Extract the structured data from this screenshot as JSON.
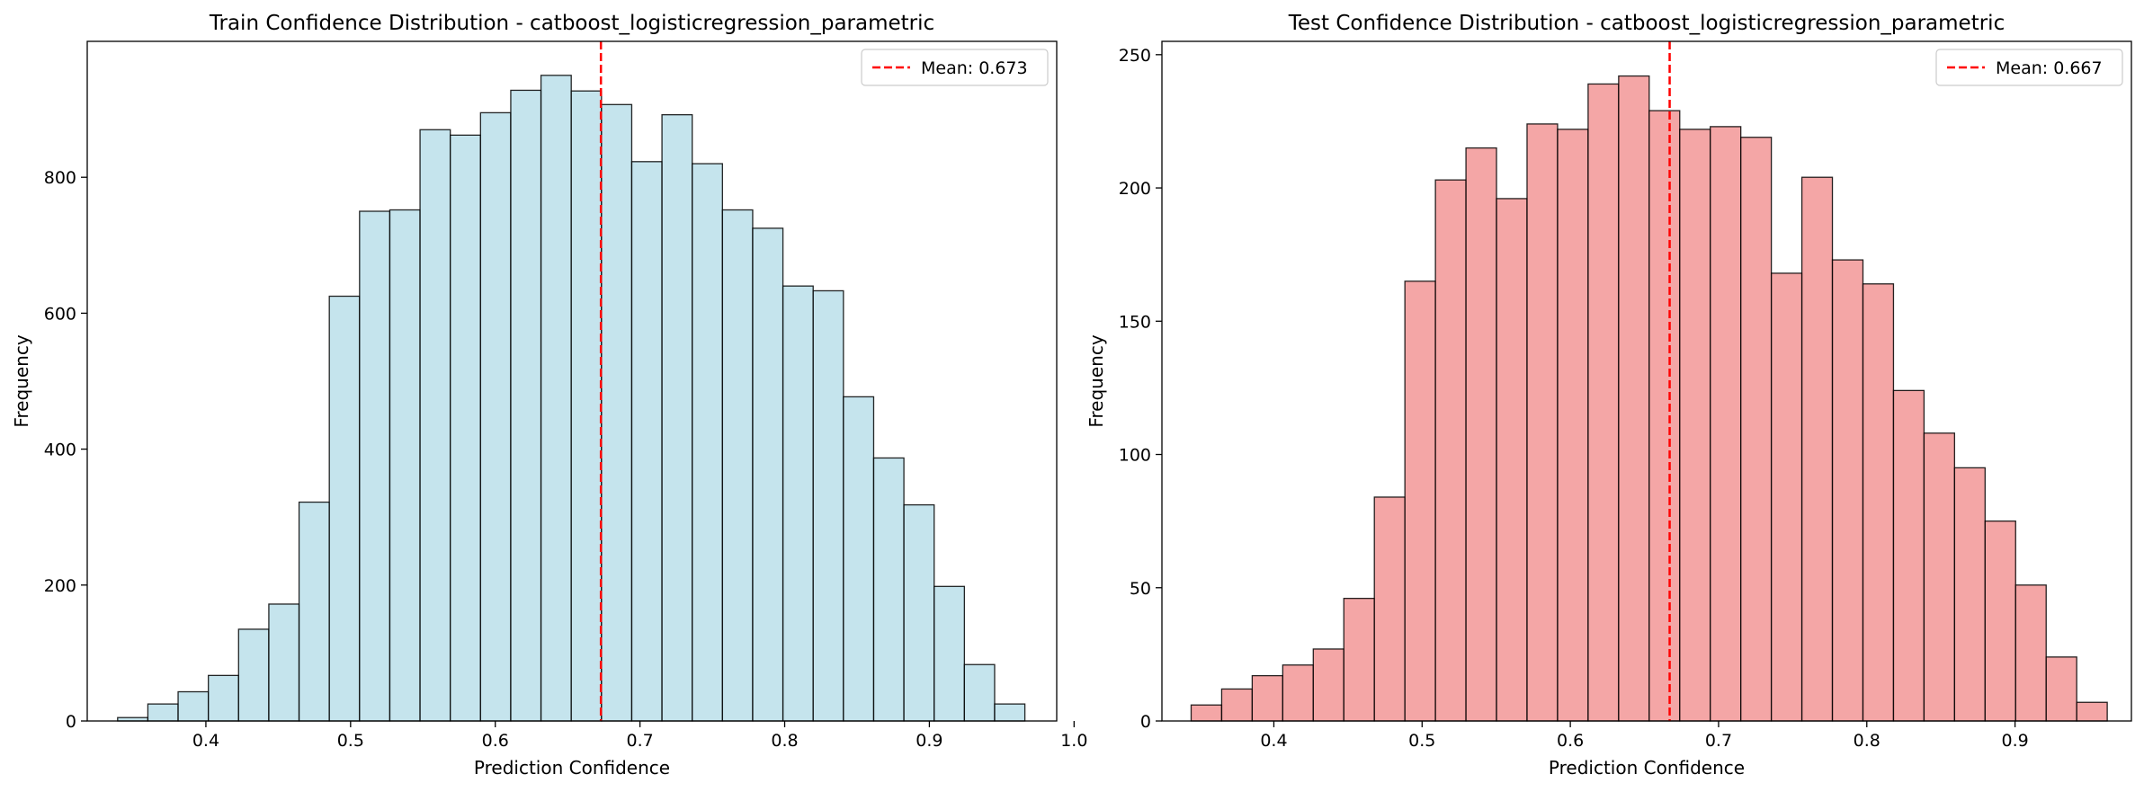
{
  "chart_data": [
    {
      "type": "bar",
      "title": "Train Confidence Distribution - catboost_logisticregression_parametric",
      "xlabel": "Prediction Confidence",
      "ylabel": "Frequency",
      "xlim": [
        0.318,
        0.988
      ],
      "ylim": [
        0,
        1000
      ],
      "xticks": [
        0.4,
        0.5,
        0.6,
        0.7,
        0.8,
        0.9,
        1.0
      ],
      "xtick_labels": [
        "0.4",
        "0.5",
        "0.6",
        "0.7",
        "0.8",
        "0.9",
        "1.0"
      ],
      "yticks": [
        0,
        200,
        400,
        600,
        800
      ],
      "ytick_labels": [
        "0",
        "200",
        "400",
        "600",
        "800"
      ],
      "bin_start": 0.339,
      "bin_width": 0.0209,
      "values": [
        5,
        25,
        43,
        67,
        135,
        172,
        322,
        625,
        750,
        752,
        870,
        862,
        895,
        928,
        950,
        927,
        907,
        823,
        892,
        820,
        752,
        725,
        640,
        633,
        477,
        387,
        318,
        198,
        83,
        25
      ],
      "bar_color": "#add8e6",
      "mean": 0.673,
      "mean_label": "Mean: 0.673",
      "mean_color": "#ff0000",
      "legend_position": "upper right",
      "grid": false
    },
    {
      "type": "bar",
      "title": "Test Confidence Distribution - catboost_logisticregression_parametric",
      "xlabel": "Prediction Confidence",
      "ylabel": "Frequency",
      "xlim": [
        0.3245,
        0.9785
      ],
      "ylim": [
        0,
        255
      ],
      "xticks": [
        0.4,
        0.5,
        0.6,
        0.7,
        0.8,
        0.9
      ],
      "xtick_labels": [
        "0.4",
        "0.5",
        "0.6",
        "0.7",
        "0.8",
        "0.9"
      ],
      "yticks": [
        0,
        50,
        100,
        150,
        200,
        250
      ],
      "ytick_labels": [
        "0",
        "50",
        "100",
        "150",
        "200",
        "250"
      ],
      "bin_start": 0.3442,
      "bin_width": 0.0206,
      "values": [
        6,
        12,
        17,
        21,
        27,
        46,
        84,
        165,
        203,
        215,
        196,
        224,
        222,
        239,
        242,
        229,
        222,
        223,
        219,
        168,
        204,
        173,
        164,
        124,
        108,
        95,
        75,
        51,
        24,
        7
      ],
      "bar_color": "#f08080",
      "mean": 0.667,
      "mean_label": "Mean: 0.667",
      "mean_color": "#ff0000",
      "legend_position": "upper right",
      "grid": false
    }
  ]
}
